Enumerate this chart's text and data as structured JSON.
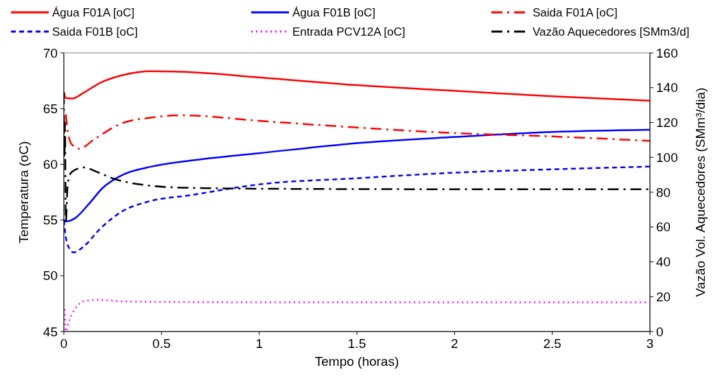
{
  "chart_data": {
    "type": "line",
    "xlabel": "Tempo (horas)",
    "ylabel": "Temperatura (oC)",
    "y2label": "Vazão Vol. Aquecedores (SMm³/dia)",
    "xlim": [
      0,
      3
    ],
    "xticks": [
      0,
      0.5,
      1,
      1.5,
      2,
      2.5,
      3
    ],
    "ylim": [
      45,
      70
    ],
    "yticks": [
      45,
      50,
      55,
      60,
      65,
      70
    ],
    "y2lim": [
      0,
      160
    ],
    "y2ticks": [
      0,
      20,
      40,
      60,
      80,
      100,
      120,
      140,
      160
    ],
    "grid": false,
    "legend": "top",
    "marker": "none",
    "series": [
      {
        "name": "Água F01A [oC]",
        "color": "#ff0000",
        "line_style": "solid",
        "x": [
          0,
          0.01,
          0.044,
          0.1,
          0.185,
          0.3,
          0.45,
          0.6,
          1,
          1.5,
          2,
          2.5,
          3
        ],
        "values": [
          66.5,
          65.95,
          65.9,
          66.4,
          67.3,
          68.0,
          68.35,
          68.3,
          67.8,
          67.1,
          66.6,
          66.1,
          65.7
        ]
      },
      {
        "name": "Água F01B [oC]",
        "color": "#0000ff",
        "line_style": "solid",
        "x": [
          0,
          0.02,
          0.06,
          0.126,
          0.2,
          0.3,
          0.45,
          0.655,
          1,
          1.5,
          2,
          2.5,
          3
        ],
        "values": [
          55,
          54.9,
          55.2,
          56.4,
          57.9,
          59.05,
          59.8,
          60.35,
          61.0,
          61.9,
          62.45,
          62.9,
          63.1
        ]
      },
      {
        "name": "Saida F01A [oC]",
        "color": "#ff0000",
        "line_style": "dashdot",
        "x": [
          0.01,
          0.02,
          0.04,
          0.079,
          0.16,
          0.3,
          0.45,
          0.6,
          1,
          1.5,
          2,
          2.5,
          3
        ],
        "values": [
          64.5,
          63,
          61.8,
          61.4,
          62.3,
          63.7,
          64.2,
          64.4,
          63.9,
          63.3,
          62.8,
          62.5,
          62.1
        ]
      },
      {
        "name": "Saida F01B [oC]",
        "color": "#0000ff",
        "line_style": "dashed",
        "x": [
          0,
          0.01,
          0.03,
          0.05,
          0.1,
          0.185,
          0.3,
          0.42,
          0.655,
          1,
          1.5,
          2,
          2.5,
          3
        ],
        "values": [
          55,
          53.5,
          52.4,
          52.1,
          52.6,
          54.2,
          55.8,
          56.6,
          57.25,
          58.2,
          58.75,
          59.25,
          59.55,
          59.8
        ]
      },
      {
        "name": "Entrada PCV12A [oC]",
        "color": "#ff00ff",
        "line_style": "dotted",
        "x": [
          0.005,
          0.01,
          0.03,
          0.065,
          0.1,
          0.17,
          0.3,
          0.6,
          1,
          2,
          3
        ],
        "values": [
          47,
          45,
          46.1,
          47.2,
          47.7,
          47.85,
          47.7,
          47.65,
          47.62,
          47.62,
          47.62
        ]
      },
      {
        "name": "Vazão Aquecedores [SMm3/d]",
        "color": "#000000",
        "line_style": "dashdot",
        "axis": "y2",
        "x": [
          0,
          0.003,
          0.006,
          0.01,
          0.02,
          0.04,
          0.1,
          0.185,
          0.26,
          0.4,
          0.61,
          1,
          2,
          3
        ],
        "values": [
          137,
          100,
          120,
          62,
          85,
          91.5,
          94.2,
          90.9,
          87.6,
          84.3,
          82.6,
          82,
          81.7,
          81.7
        ]
      }
    ]
  }
}
